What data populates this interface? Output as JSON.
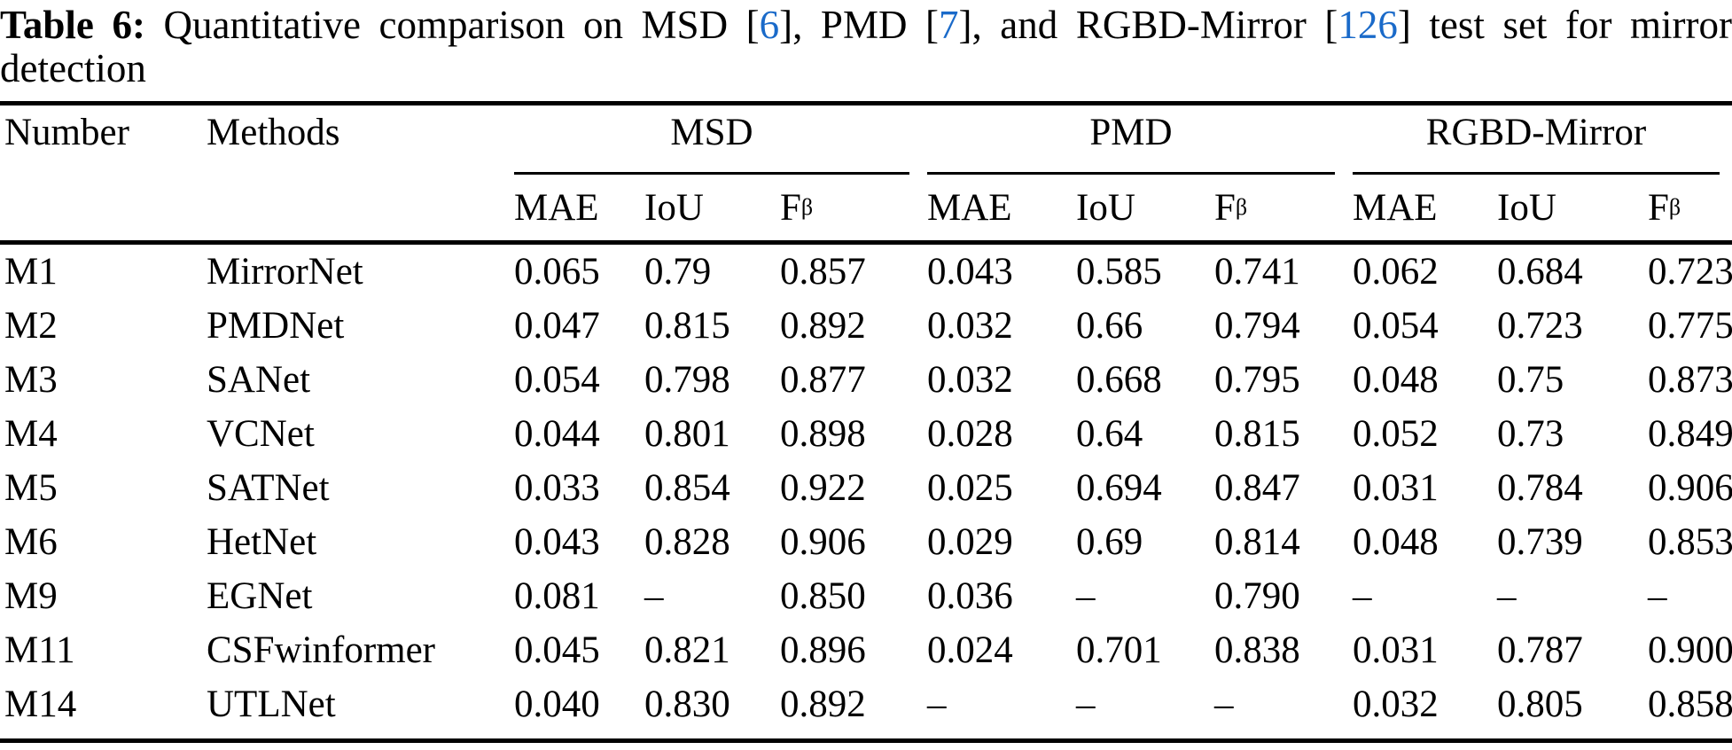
{
  "colors": {
    "text": "#000000",
    "background": "#ffffff",
    "citation_blue": "#1a6ac9"
  },
  "caption": {
    "label": "Table 6:",
    "seg1": " Quantitative comparison on MSD [",
    "cite1": "6",
    "seg2": "], PMD [",
    "cite2": "7",
    "seg3": "], and RGBD-Mirror [",
    "cite3": "126",
    "seg4": "] test set for mirror",
    "line2": "detection"
  },
  "table": {
    "header": {
      "number": "Number",
      "methods": "Methods",
      "groups": [
        {
          "label": "MSD"
        },
        {
          "label": "PMD"
        },
        {
          "label": "RGBD-Mirror"
        }
      ],
      "metric_mae": "MAE",
      "metric_iou": "IoU",
      "metric_f": "F",
      "metric_f_sub": "β"
    },
    "rows": [
      {
        "number": "M1",
        "method": "MirrorNet",
        "values": [
          "0.065",
          "0.79",
          "0.857",
          "0.043",
          "0.585",
          "0.741",
          "0.062",
          "0.684",
          "0.723"
        ]
      },
      {
        "number": "M2",
        "method": "PMDNet",
        "values": [
          "0.047",
          "0.815",
          "0.892",
          "0.032",
          "0.66",
          "0.794",
          "0.054",
          "0.723",
          "0.775"
        ]
      },
      {
        "number": "M3",
        "method": "SANet",
        "values": [
          "0.054",
          "0.798",
          "0.877",
          "0.032",
          "0.668",
          "0.795",
          "0.048",
          "0.75",
          "0.873"
        ]
      },
      {
        "number": "M4",
        "method": "VCNet",
        "values": [
          "0.044",
          "0.801",
          "0.898",
          "0.028",
          "0.64",
          "0.815",
          "0.052",
          "0.73",
          "0.849"
        ]
      },
      {
        "number": "M5",
        "method": "SATNet",
        "values": [
          "0.033",
          "0.854",
          "0.922",
          "0.025",
          "0.694",
          "0.847",
          "0.031",
          "0.784",
          "0.906"
        ]
      },
      {
        "number": "M6",
        "method": "HetNet",
        "values": [
          "0.043",
          "0.828",
          "0.906",
          "0.029",
          "0.69",
          "0.814",
          "0.048",
          "0.739",
          "0.853"
        ]
      },
      {
        "number": "M9",
        "method": "EGNet",
        "values": [
          "0.081",
          "–",
          "0.850",
          "0.036",
          "–",
          "0.790",
          "–",
          "–",
          "–"
        ]
      },
      {
        "number": "M11",
        "method": "CSFwinformer",
        "values": [
          "0.045",
          "0.821",
          "0.896",
          "0.024",
          "0.701",
          "0.838",
          "0.031",
          "0.787",
          "0.900"
        ]
      },
      {
        "number": "M14",
        "method": "UTLNet",
        "values": [
          "0.040",
          "0.830",
          "0.892",
          "–",
          "–",
          "–",
          "0.032",
          "0.805",
          "0.858"
        ]
      }
    ]
  }
}
